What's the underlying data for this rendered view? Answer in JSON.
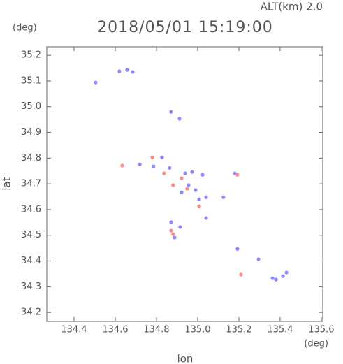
{
  "chart_data": {
    "type": "scatter",
    "title": "2018/05/01 15:19:00",
    "subtitle": "ALT(km) 2.0",
    "x_unit": "(deg)",
    "y_unit": "(deg)",
    "x_label": "lon",
    "y_label": "lat",
    "xlim": [
      134.268,
      135.607
    ],
    "ylim": [
      34.165,
      35.233
    ],
    "xticks": [
      134.4,
      134.6,
      134.8,
      {
        "value": 135,
        "label": "135.0"
      },
      135.2,
      135.4,
      135.6
    ],
    "yticks": [
      34.2,
      34.3,
      34.4,
      34.5,
      34.6,
      34.7,
      34.8,
      34.9,
      {
        "value": 35,
        "label": "35.0"
      },
      35.1,
      35.2
    ],
    "series": [
      {
        "color": "#6a6aff",
        "x": [
          134.62,
          134.658,
          134.685,
          134.505,
          134.871,
          134.912,
          134.827,
          134.786,
          134.719,
          134.864,
          134.939,
          134.973,
          135.024,
          134.956,
          134.99,
          134.922,
          135.007,
          135.041,
          134.871,
          134.915,
          134.888,
          135.041,
          135.18,
          135.125,
          135.193,
          135.295,
          135.363,
          135.414,
          135.431,
          135.38
        ],
        "values": [
          35.138,
          35.143,
          35.135,
          35.094,
          34.98,
          34.953,
          34.803,
          34.768,
          34.776,
          34.762,
          34.741,
          34.746,
          34.735,
          34.695,
          34.676,
          34.667,
          34.64,
          34.648,
          34.551,
          34.532,
          34.491,
          34.567,
          34.741,
          34.648,
          34.447,
          34.407,
          34.333,
          34.341,
          34.355,
          34.328
        ]
      },
      {
        "color": "#ff6a6a",
        "x": [
          134.634,
          134.78,
          134.837,
          134.881,
          134.922,
          134.871,
          134.881,
          135.193,
          135.007,
          135.21,
          134.949
        ],
        "values": [
          34.771,
          34.803,
          34.741,
          34.695,
          34.722,
          34.518,
          34.504,
          34.735,
          34.613,
          34.347,
          34.681
        ]
      }
    ]
  }
}
